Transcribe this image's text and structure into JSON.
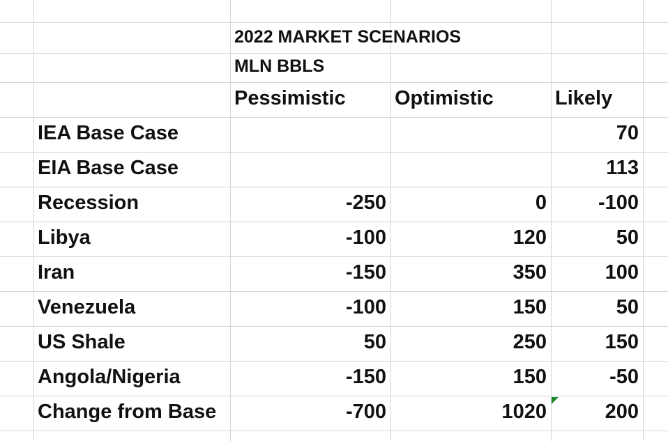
{
  "sheet": {
    "title": "2022 MARKET SCENARIOS",
    "units": "MLN BBLS",
    "columns": [
      "Pessimistic",
      "Optimistic",
      "Likely"
    ],
    "rows": [
      {
        "label": "IEA Base Case",
        "values": [
          "",
          "",
          "70"
        ]
      },
      {
        "label": "EIA Base Case",
        "values": [
          "",
          "",
          "113"
        ]
      },
      {
        "label": "Recession",
        "values": [
          "-250",
          "0",
          "-100"
        ]
      },
      {
        "label": "Libya",
        "values": [
          "-100",
          "120",
          "50"
        ]
      },
      {
        "label": "Iran",
        "values": [
          "-150",
          "350",
          "100"
        ]
      },
      {
        "label": "Venezuela",
        "values": [
          "-100",
          "150",
          "50"
        ]
      },
      {
        "label": "US Shale",
        "values": [
          "50",
          "250",
          "150"
        ]
      },
      {
        "label": "Angola/Nigeria",
        "values": [
          "-150",
          "150",
          "-50"
        ]
      },
      {
        "label": "Change from Base",
        "values": [
          "-700",
          "1020",
          "200"
        ]
      }
    ],
    "error_indicator_color": "#1a8a2a"
  }
}
